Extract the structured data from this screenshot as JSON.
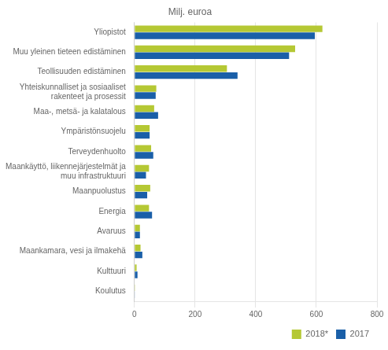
{
  "chart_data": {
    "type": "bar",
    "orientation": "horizontal",
    "title": "Milj. euroa",
    "categories": [
      "Yliopistot",
      "Muu yleinen tieteen edistäminen",
      "Teollisuuden edistäminen",
      "Yhteiskunnalliset ja sosiaaliset\nrakenteet ja prosessit",
      "Maa-, metsä- ja kalatalous",
      "Ympäristönsuojelu",
      "Terveydenhuolto",
      "Maankäyttö, liikennejärjestelmät ja\nmuu infrastruktuuri",
      "Maanpuolustus",
      "Energia",
      "Avaruus",
      "Maankamara, vesi ja ilmakehä",
      "Kulttuuri",
      "Koulutus"
    ],
    "series": [
      {
        "name": "2018*",
        "color": "#b5c834",
        "values": [
          620,
          530,
          305,
          72,
          65,
          50,
          55,
          48,
          52,
          48,
          18,
          20,
          7,
          2
        ]
      },
      {
        "name": "2017",
        "color": "#1a5fa8",
        "values": [
          595,
          510,
          340,
          70,
          78,
          50,
          62,
          38,
          42,
          58,
          18,
          26,
          10,
          1
        ]
      }
    ],
    "xlim": [
      0,
      800
    ],
    "xticks": [
      0,
      200,
      400,
      600,
      800
    ],
    "grid": true,
    "legend": "lower right"
  }
}
